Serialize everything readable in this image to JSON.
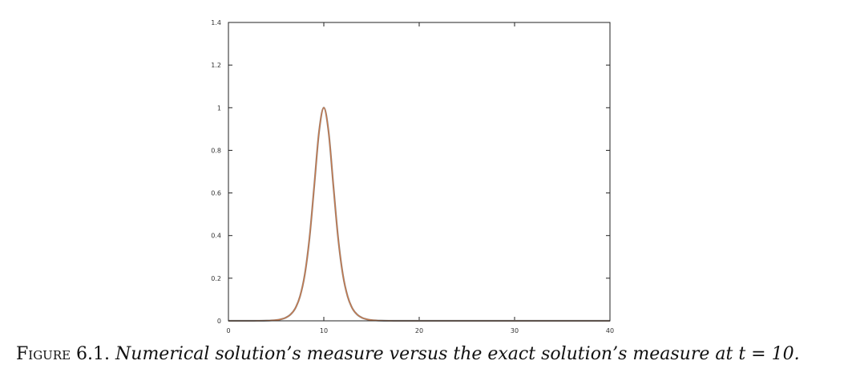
{
  "chart_data": {
    "type": "line",
    "title": "",
    "xlabel": "",
    "ylabel": "",
    "xlim": [
      0,
      40
    ],
    "ylim": [
      0,
      1.4
    ],
    "grid": false,
    "legend": "none",
    "x_ticks": [
      "0",
      "10",
      "20",
      "30",
      "40"
    ],
    "y_ticks": [
      "0",
      "0.2",
      "0.4",
      "0.6",
      "0.8",
      "1",
      "1.2",
      "1.4"
    ],
    "x": [
      0,
      2,
      3,
      4,
      5,
      5.5,
      6,
      6.5,
      7,
      7.5,
      8,
      8.5,
      9,
      9.5,
      10,
      10.5,
      11,
      11.5,
      12,
      12.5,
      13,
      13.5,
      14,
      14.5,
      15,
      16,
      17,
      18,
      20,
      30,
      40
    ],
    "series": [
      {
        "color": "#8a8a8a",
        "values": [
          0,
          0,
          0.0002,
          0.0009,
          0.0036,
          0.0073,
          0.0147,
          0.0293,
          0.058,
          0.114,
          0.216,
          0.389,
          0.635,
          0.887,
          1,
          0.887,
          0.635,
          0.389,
          0.216,
          0.114,
          0.058,
          0.0293,
          0.0147,
          0.0073,
          0.0036,
          0.0009,
          0.0002,
          0,
          0,
          0,
          0
        ]
      },
      {
        "color": "#c8784a",
        "values": [
          0,
          0,
          0.0002,
          0.0009,
          0.0036,
          0.0073,
          0.0147,
          0.0293,
          0.058,
          0.114,
          0.216,
          0.389,
          0.635,
          0.887,
          1,
          0.887,
          0.635,
          0.389,
          0.216,
          0.114,
          0.058,
          0.0293,
          0.0147,
          0.0073,
          0.0036,
          0.0009,
          0.0002,
          0,
          0,
          0,
          0
        ]
      }
    ]
  },
  "caption": {
    "label": "Figure 6.1.",
    "text": "Numerical solution’s measure versus the exact solution’s measure at t = 10."
  }
}
